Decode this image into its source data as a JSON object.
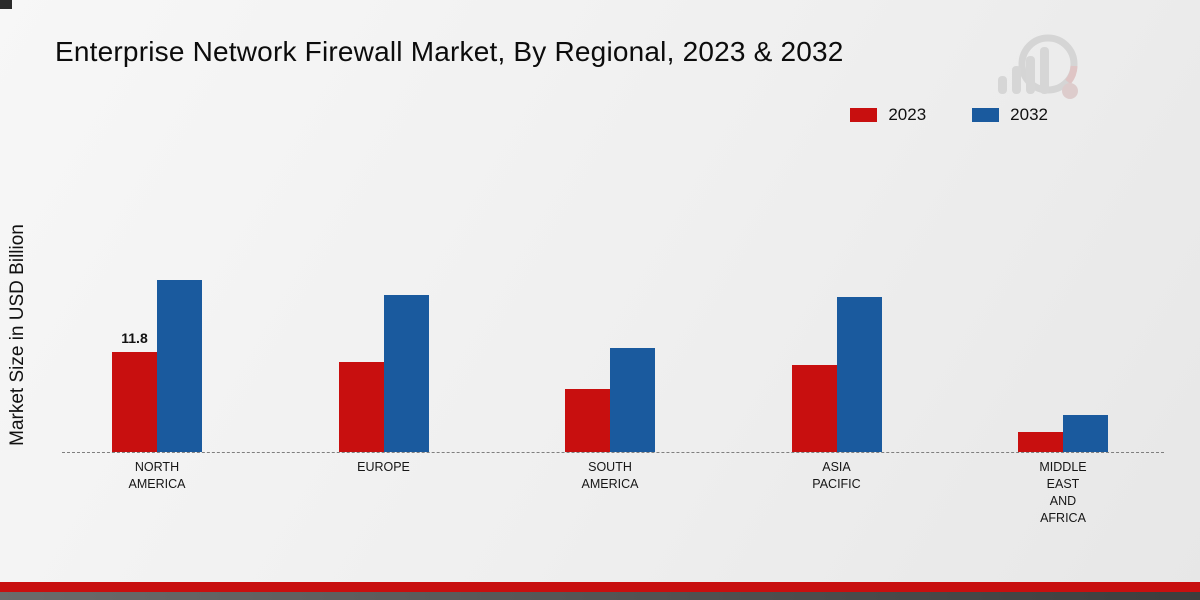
{
  "title": "Enterprise Network Firewall Market, By Regional, 2023 & 2032",
  "ylabel": "Market Size in USD Billion",
  "legend": [
    {
      "label": "2023",
      "color": "#c80f0f"
    },
    {
      "label": "2032",
      "color": "#1a5a9e"
    }
  ],
  "colors": {
    "accent_red": "#c80f0f",
    "accent_blue": "#1a5a9e",
    "footer_red": "#c80f0f",
    "footer_dark": "#3d3d3d"
  },
  "chart_data": {
    "type": "bar",
    "title": "Enterprise Network Firewall Market, By Regional, 2023 & 2032",
    "ylabel": "Market Size in USD Billion",
    "categories": [
      "NORTH AMERICA",
      "EUROPE",
      "SOUTH AMERICA",
      "ASIA PACIFIC",
      "MIDDLE EAST AND AFRICA"
    ],
    "category_label_lines": [
      [
        "NORTH",
        "AMERICA"
      ],
      [
        "EUROPE"
      ],
      [
        "SOUTH",
        "AMERICA"
      ],
      [
        "ASIA",
        "PACIFIC"
      ],
      [
        "MIDDLE",
        "EAST",
        "AND",
        "AFRICA"
      ]
    ],
    "series": [
      {
        "name": "2023",
        "color": "#c80f0f",
        "values": [
          11.8,
          10.6,
          7.4,
          10.3,
          2.4
        ]
      },
      {
        "name": "2032",
        "color": "#1a5a9e",
        "values": [
          20.3,
          18.5,
          12.3,
          18.3,
          4.4
        ]
      }
    ],
    "data_labels": [
      {
        "series": "2023",
        "category_index": 0,
        "text": "11.8"
      }
    ],
    "ylim": [
      0,
      22
    ],
    "grid": false,
    "baseline_dashed": true,
    "legend_position": "top-right"
  }
}
